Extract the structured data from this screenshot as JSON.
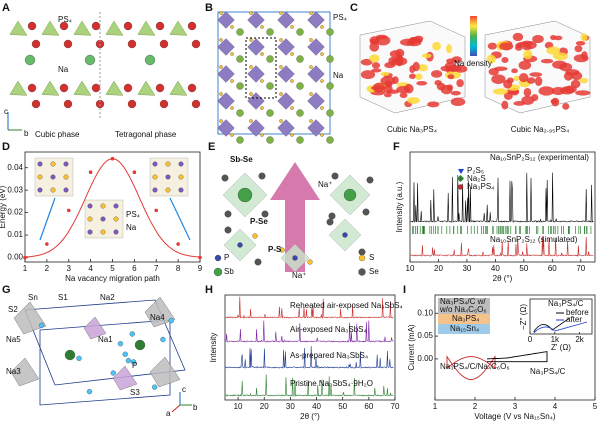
{
  "panels": {
    "A": {
      "letter": "A",
      "labels": [
        "PS₄",
        "Na",
        "Cubic phase",
        "Tetragonal phase"
      ],
      "axes": [
        "c",
        "b"
      ]
    },
    "B": {
      "letter": "B",
      "labels": [
        "PS₄",
        "Na"
      ]
    },
    "C": {
      "letter": "C",
      "labels": [
        "Na density",
        "Cubic Na₃PS₄",
        "Cubic Na₂.₉₅PS₄"
      ]
    },
    "D": {
      "letter": "D",
      "ylabel": "Energy (eV)",
      "xlabel": "Na vacancy migration path",
      "xlim": [
        1,
        9
      ],
      "ylim": [
        -0.002,
        0.047
      ],
      "xticks": [
        1,
        2,
        3,
        4,
        5,
        6,
        7,
        8,
        9
      ],
      "yticks": [
        {
          "value": 0,
          "label": "0.00"
        },
        {
          "value": 0.01,
          "label": "0.01"
        },
        {
          "value": 0.02,
          "label": "0.02"
        },
        {
          "value": 0.03,
          "label": "0.03"
        },
        {
          "value": 0.04,
          "label": "0.04"
        }
      ],
      "x": [
        1,
        2,
        3,
        4,
        5,
        6,
        7,
        8,
        9
      ],
      "values": [
        0,
        0.006,
        0.021,
        0.038,
        0.044,
        0.038,
        0.021,
        0.006,
        0
      ],
      "labels": [
        "PS₄",
        "Na"
      ]
    },
    "E": {
      "letter": "E",
      "labels": [
        "Sb-Se",
        "Na⁺",
        "P-Se",
        "P-S",
        "Na⁺",
        "P",
        "Sb",
        "S",
        "Se"
      ]
    },
    "F": {
      "letter": "F",
      "ylabel": "Intensity (a.u.)",
      "xlabel": "2θ (°)",
      "xlim": [
        10,
        75
      ],
      "xticks": [
        10,
        20,
        30,
        40,
        50,
        60,
        70
      ],
      "labels": [
        "Na₁₀SnP₂S₁₂ (experimental)",
        "Na₁₀SnP₂S₁₂ (simulated)"
      ],
      "legend": [
        "P₂S₅",
        "Na₂S",
        "Na₃PS₄"
      ]
    },
    "G": {
      "letter": "G",
      "labels": [
        "S2",
        "Sn",
        "S1",
        "Na2",
        "Na4",
        "Na5",
        "Na1",
        "Na3",
        "P",
        "S3"
      ],
      "axes": [
        "c",
        "b",
        "a"
      ]
    },
    "H": {
      "letter": "H",
      "ylabel": "Intensity",
      "xlabel": "2θ (°)",
      "xlim": [
        5,
        70
      ],
      "xticks": [
        10,
        20,
        30,
        40,
        50,
        60,
        70
      ],
      "labels": [
        "Reheated air-exposed Na₃SbS₄",
        "Air-exposed Na₃SbS₄",
        "As-prepared Na₃SbS₄",
        "Pristine Na₃SbS₄·9H₂O"
      ]
    },
    "I": {
      "letter": "I",
      "ylabel": "Current (mA)",
      "xlabel": "Voltage (V vs Na₁₅Sn₄)",
      "xlim": [
        1,
        5
      ],
      "ylim": [
        -0.09,
        0.14
      ],
      "xticks": [
        1,
        2,
        3,
        4,
        5
      ],
      "yticks": [
        {
          "value": 0,
          "label": "0.00"
        },
        {
          "value": 0.05,
          "label": "0.05"
        },
        {
          "value": 0.1,
          "label": "0.10"
        }
      ],
      "labels": [
        "Na₃PS₄/C/Na₄C₆O₆",
        "Na₃PS₄/C"
      ],
      "stack": [
        "Na₃PS₄/C w/",
        "w/o Na₄C₆O₆",
        "Na₃PS₄",
        "Na₁₅Sn₄"
      ],
      "inset": {
        "title": "Na₃PS₄/C",
        "legend": [
          "before",
          "after"
        ],
        "ylabel": "−Z'' (Ω)",
        "xlabel": "Z' (Ω)",
        "xlim": [
          0,
          2500
        ],
        "xticks": [
          0,
          {
            "value": 1000,
            "label": "1k"
          },
          {
            "value": 2000,
            "label": "2k"
          }
        ]
      }
    }
  }
}
